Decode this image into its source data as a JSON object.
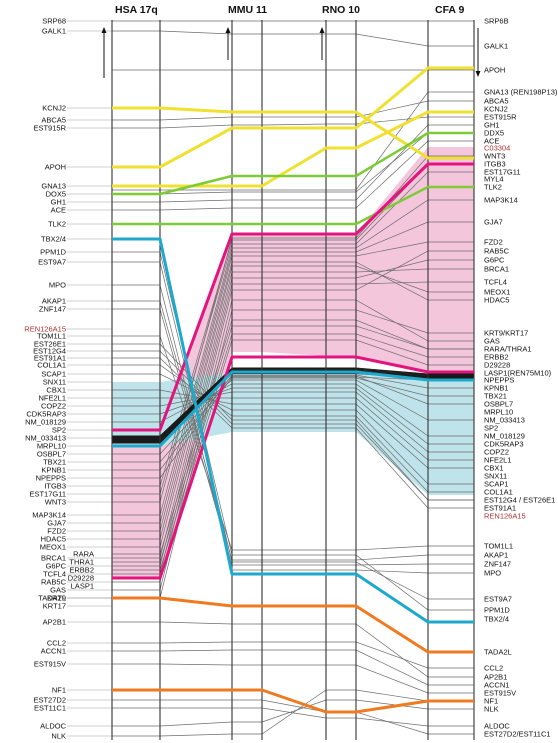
{
  "headers": [
    "HSA 17q",
    "MMU 11",
    "RNO 10",
    "CFA 9"
  ],
  "left_labels": [
    {
      "t": "SRP68",
      "y": 21
    },
    {
      "t": "GALK1",
      "y": 31
    },
    {
      "t": "KCNJ2",
      "y": 108
    },
    {
      "t": "ABCA5",
      "y": 120
    },
    {
      "t": "EST915R",
      "y": 128
    },
    {
      "t": "APOH",
      "y": 167
    },
    {
      "t": "GNA13",
      "y": 186
    },
    {
      "t": "DOX5",
      "y": 194
    },
    {
      "t": "GH1",
      "y": 202
    },
    {
      "t": "ACE",
      "y": 210
    },
    {
      "t": "TLK2",
      "y": 224
    },
    {
      "t": "TBX2/4",
      "y": 239
    },
    {
      "t": "PPM1D",
      "y": 252
    },
    {
      "t": "EST9A7",
      "y": 262
    },
    {
      "t": "MPO",
      "y": 285
    },
    {
      "t": "AKAP1",
      "y": 301
    },
    {
      "t": "ZNF147",
      "y": 309
    },
    {
      "t": "TOM1L1",
      "y": 336
    },
    {
      "t": "REN126A15",
      "y": 329,
      "red": true
    },
    {
      "t": "EST26E1",
      "y": 344
    },
    {
      "t": "EST12G4",
      "y": 351
    },
    {
      "t": "EST91A1",
      "y": 358
    },
    {
      "t": "COL1A1",
      "y": 365
    },
    {
      "t": "SCAP1",
      "y": 374
    },
    {
      "t": "SNX11",
      "y": 382
    },
    {
      "t": "CBX1",
      "y": 390
    },
    {
      "t": "NFE2L1",
      "y": 398
    },
    {
      "t": "COPZ2",
      "y": 406
    },
    {
      "t": "CDK5RAP3",
      "y": 414
    },
    {
      "t": "NM_018129",
      "y": 422
    },
    {
      "t": "SP2",
      "y": 430
    },
    {
      "t": "NM_033413",
      "y": 438
    },
    {
      "t": "MRPL10",
      "y": 446
    },
    {
      "t": "OSBPL7",
      "y": 454
    },
    {
      "t": "TBX21",
      "y": 462
    },
    {
      "t": "KPNB1",
      "y": 470
    },
    {
      "t": "NPEPPS",
      "y": 478
    },
    {
      "t": "ITGB3",
      "y": 486
    },
    {
      "t": "EST17G11",
      "y": 494
    },
    {
      "t": "WNT3",
      "y": 502
    },
    {
      "t": "MAP3K14",
      "y": 515
    },
    {
      "t": "GJA7",
      "y": 523
    },
    {
      "t": "FZD2",
      "y": 531
    },
    {
      "t": "HDAC5",
      "y": 539
    },
    {
      "t": "MEOX1",
      "y": 547
    },
    {
      "t": "BRCA1",
      "y": 558
    },
    {
      "t": "G6PC",
      "y": 566
    },
    {
      "t": "TCFL4",
      "y": 574
    },
    {
      "t": "RAB5C",
      "y": 582
    },
    {
      "t": "GAS",
      "y": 590
    },
    {
      "t": "KRT9",
      "y": 598
    },
    {
      "t": "KRT17",
      "y": 606
    },
    {
      "t": "TADA2L",
      "y": 598
    },
    {
      "t": "AP2B1",
      "y": 622
    },
    {
      "t": "CCL2",
      "y": 643
    },
    {
      "t": "ACCN1",
      "y": 651
    },
    {
      "t": "EST915V",
      "y": 664
    },
    {
      "t": "NF1",
      "y": 690
    },
    {
      "t": "EST27D2",
      "y": 700
    },
    {
      "t": "EST11C1",
      "y": 708
    },
    {
      "t": "ALDOC",
      "y": 726
    },
    {
      "t": "NLK",
      "y": 736
    }
  ],
  "inner_labels": [
    {
      "t": "RARA",
      "y": 554
    },
    {
      "t": "THRA1",
      "y": 562
    },
    {
      "t": "ERBB2",
      "y": 570
    },
    {
      "t": "D29228",
      "y": 578
    },
    {
      "t": "LASP1",
      "y": 586
    }
  ],
  "right_labels": [
    {
      "t": "SRP6B",
      "y": 21
    },
    {
      "t": "GALK1",
      "y": 46
    },
    {
      "t": "APOH",
      "y": 70
    },
    {
      "t": "GNA13 (REN198P13)",
      "y": 92
    },
    {
      "t": "ABCA5",
      "y": 101
    },
    {
      "t": "KCNJ2",
      "y": 109
    },
    {
      "t": "EST915R",
      "y": 117
    },
    {
      "t": "GH1",
      "y": 125
    },
    {
      "t": "DDX5",
      "y": 133
    },
    {
      "t": "ACE",
      "y": 141
    },
    {
      "t": "C03304",
      "y": 148,
      "red": true
    },
    {
      "t": "WNT3",
      "y": 156
    },
    {
      "t": "ITGB3",
      "y": 164
    },
    {
      "t": "EST17G11",
      "y": 172
    },
    {
      "t": "MYL4",
      "y": 179
    },
    {
      "t": "TLK2",
      "y": 187
    },
    {
      "t": "MAP3K14",
      "y": 200
    },
    {
      "t": "GJA7",
      "y": 222
    },
    {
      "t": "FZD2",
      "y": 242
    },
    {
      "t": "RAB5C",
      "y": 251
    },
    {
      "t": "G6PC",
      "y": 260
    },
    {
      "t": "BRCA1",
      "y": 269
    },
    {
      "t": "TCFL4",
      "y": 282
    },
    {
      "t": "MEOX1",
      "y": 292
    },
    {
      "t": "HDAC5",
      "y": 300
    },
    {
      "t": "KRT9/KRT17",
      "y": 333
    },
    {
      "t": "GAS",
      "y": 341
    },
    {
      "t": "RARA/THRA1",
      "y": 349
    },
    {
      "t": "ERBB2",
      "y": 357
    },
    {
      "t": "D29228",
      "y": 365
    },
    {
      "t": "LASP1(REN75M10)",
      "y": 373
    },
    {
      "t": "NPEPPS",
      "y": 380
    },
    {
      "t": "KPNB1",
      "y": 388
    },
    {
      "t": "TBX21",
      "y": 396
    },
    {
      "t": "OSBPL7",
      "y": 404
    },
    {
      "t": "MRPL10",
      "y": 412
    },
    {
      "t": "NM_033413",
      "y": 420
    },
    {
      "t": "SP2",
      "y": 428
    },
    {
      "t": "NM_018129",
      "y": 436
    },
    {
      "t": "CDK5RAP3",
      "y": 444
    },
    {
      "t": "COPZ2",
      "y": 452
    },
    {
      "t": "NFE2L1",
      "y": 460
    },
    {
      "t": "CBX1",
      "y": 468
    },
    {
      "t": "SNX11",
      "y": 476
    },
    {
      "t": "SCAP1",
      "y": 484
    },
    {
      "t": "COL1A1",
      "y": 492
    },
    {
      "t": "EST12G4 / EST26E1",
      "y": 500
    },
    {
      "t": "EST91A1",
      "y": 508
    },
    {
      "t": "REN126A15",
      "y": 516,
      "red": true
    },
    {
      "t": "TOM1L1",
      "y": 546
    },
    {
      "t": "AKAP1",
      "y": 555
    },
    {
      "t": "ZNF147",
      "y": 564
    },
    {
      "t": "MPO",
      "y": 573
    },
    {
      "t": "EST9A7",
      "y": 599
    },
    {
      "t": "PPM1D",
      "y": 610
    },
    {
      "t": "TBX2/4",
      "y": 619
    },
    {
      "t": "TADA2L",
      "y": 652
    },
    {
      "t": "CCL2",
      "y": 668
    },
    {
      "t": "AP2B1",
      "y": 677
    },
    {
      "t": "ACCN1",
      "y": 685
    },
    {
      "t": "EST915V",
      "y": 693
    },
    {
      "t": "NF1",
      "y": 701
    },
    {
      "t": "NLK",
      "y": 709
    },
    {
      "t": "ALDOC",
      "y": 726
    },
    {
      "t": "EST27D2/EST11C1",
      "y": 734
    }
  ],
  "colors": {
    "yellow": "#f0e030",
    "green": "#7dcb35",
    "pink": "#e3147d",
    "pink_fill": "#f4c6dc",
    "cyan": "#1da9cc",
    "cyan_fill": "#bfe3ea",
    "orange": "#f07a20",
    "grey_line": "#6e6e6e",
    "axis": "#333333"
  }
}
